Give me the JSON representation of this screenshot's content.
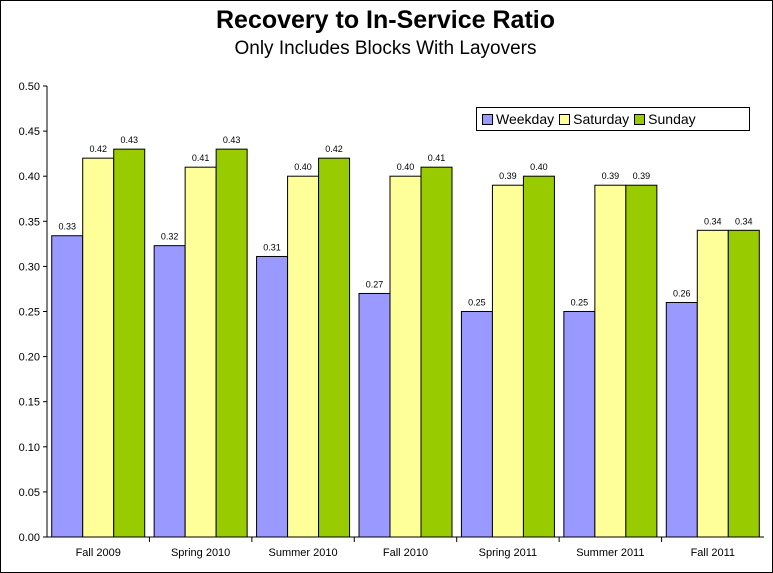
{
  "chart_data": {
    "type": "bar",
    "title": "Recovery to In-Service Ratio",
    "subtitle": "Only Includes Blocks With Layovers",
    "categories": [
      "Fall 2009",
      "Spring 2010",
      "Summer 2010",
      "Fall 2010",
      "Spring 2011",
      "Summer 2011",
      "Fall 2011"
    ],
    "series": [
      {
        "name": "Weekday",
        "color": "#9999ff",
        "values": [
          0.334,
          0.323,
          0.311,
          0.27,
          0.25,
          0.25,
          0.26
        ],
        "labels": [
          "0.33",
          "0.32",
          "0.31",
          "0.27",
          "0.25",
          "0.25",
          "0.26"
        ]
      },
      {
        "name": "Saturday",
        "color": "#ffff99",
        "values": [
          0.42,
          0.41,
          0.4,
          0.4,
          0.39,
          0.39,
          0.34
        ],
        "labels": [
          "0.42",
          "0.41",
          "0.40",
          "0.40",
          "0.39",
          "0.39",
          "0.34"
        ]
      },
      {
        "name": "Sunday",
        "color": "#99cc00",
        "values": [
          0.43,
          0.43,
          0.42,
          0.41,
          0.4,
          0.39,
          0.34
        ],
        "labels": [
          "0.43",
          "0.43",
          "0.42",
          "0.41",
          "0.40",
          "0.39",
          "0.34"
        ]
      }
    ],
    "ylim": [
      0,
      0.5
    ],
    "yticks": [
      "0.00",
      "0.05",
      "0.10",
      "0.15",
      "0.20",
      "0.25",
      "0.30",
      "0.35",
      "0.40",
      "0.45",
      "0.50"
    ],
    "grid": false,
    "legend_position": "top-right"
  }
}
